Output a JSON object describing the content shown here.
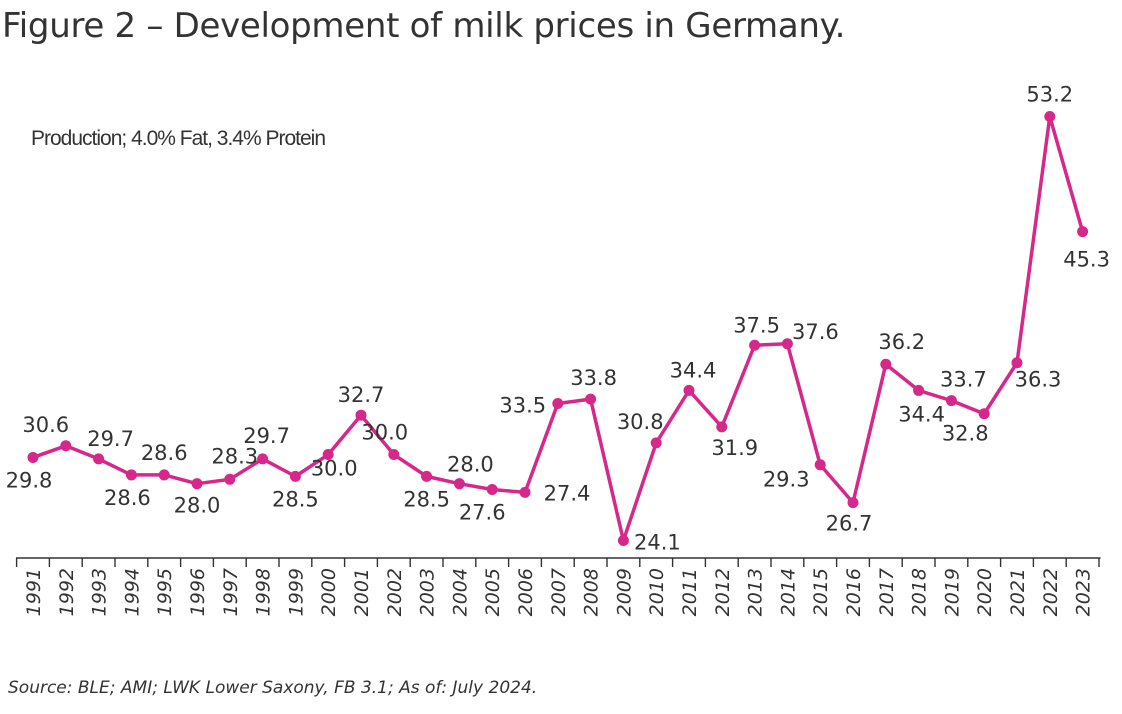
{
  "title": "Figure 2 – Development of milk prices in Germany.",
  "source": "Source: BLE; AMI; LWK Lower Saxony, FB 3.1; As of: July 2024.",
  "chart_data": {
    "type": "line",
    "subtitle": "Production; 4.0% Fat, 3.4% Protein",
    "categories": [
      "1991",
      "1992",
      "1993",
      "1994",
      "1995",
      "1996",
      "1997",
      "1998",
      "1999",
      "2000",
      "2001",
      "2002",
      "2003",
      "2004",
      "2005",
      "2006",
      "2007",
      "2008",
      "2009",
      "2010",
      "2011",
      "2012",
      "2013",
      "2014",
      "2015",
      "2016",
      "2017",
      "2018",
      "2019",
      "2020",
      "2021",
      "2022",
      "2023"
    ],
    "series": [
      {
        "values": [
          29.8,
          30.6,
          29.7,
          28.6,
          28.6,
          28.0,
          28.3,
          29.7,
          28.5,
          30.0,
          32.7,
          30.0,
          28.5,
          28.0,
          27.6,
          27.4,
          33.5,
          33.8,
          24.1,
          30.8,
          34.4,
          31.9,
          37.5,
          37.6,
          29.3,
          26.7,
          36.2,
          34.4,
          33.7,
          32.8,
          36.3,
          53.2,
          45.3
        ],
        "labels": [
          "29.8",
          "30.6",
          "29.7",
          "28.6",
          "28.6",
          "28.0",
          "28.3",
          "29.7",
          "28.5",
          "30.0",
          "32.7",
          "30.0",
          "28.5",
          "28.0",
          "27.6",
          "27.4",
          "33.5",
          "33.8",
          "24.1",
          "30.8",
          "34.4",
          "31.9",
          "37.5",
          "37.6",
          "29.3",
          "26.7",
          "36.2",
          "34.4",
          "33.7",
          "32.8",
          "36.3",
          "53.2",
          "45.3"
        ]
      }
    ],
    "color": "#d6288a",
    "grid": false,
    "legend": "none"
  }
}
